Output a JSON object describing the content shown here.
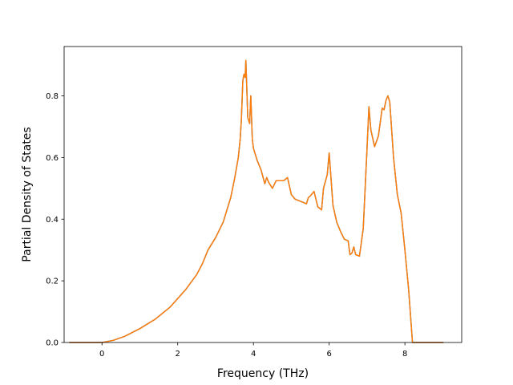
{
  "chart_data": {
    "type": "line",
    "title": "",
    "xlabel": "Frequency (THz)",
    "ylabel": "Partial Density of States",
    "xlim": [
      -1.0,
      9.5
    ],
    "ylim": [
      0.0,
      0.96
    ],
    "xticks": [
      0,
      2,
      4,
      6,
      8
    ],
    "yticks": [
      0.0,
      0.2,
      0.4,
      0.6,
      0.8
    ],
    "xtick_labels": [
      "0",
      "2",
      "4",
      "6",
      "8"
    ],
    "ytick_labels": [
      "0.0",
      "0.2",
      "0.4",
      "0.6",
      "0.8"
    ],
    "grid": false,
    "legend": false,
    "series": [
      {
        "color": "#1f77b4",
        "x": [
          -0.85,
          0.0,
          0.3,
          0.6,
          1.0,
          1.4,
          1.8,
          2.2,
          2.5,
          2.65,
          2.8,
          3.0,
          3.2,
          3.4,
          3.5,
          3.6,
          3.65,
          3.68,
          3.72,
          3.75,
          3.78,
          3.8,
          3.85,
          3.9,
          3.93,
          3.97,
          4.0,
          4.1,
          4.2,
          4.3,
          4.35,
          4.4,
          4.5,
          4.6,
          4.7,
          4.8,
          4.9,
          5.0,
          5.1,
          5.2,
          5.3,
          5.4,
          5.45,
          5.5,
          5.6,
          5.7,
          5.8,
          5.85,
          5.95,
          6.0,
          6.1,
          6.2,
          6.3,
          6.4,
          6.5,
          6.55,
          6.6,
          6.65,
          6.7,
          6.8,
          6.9,
          7.0,
          7.05,
          7.1,
          7.2,
          7.3,
          7.4,
          7.45,
          7.5,
          7.55,
          7.6,
          7.7,
          7.8,
          7.9,
          8.0,
          8.1,
          8.2,
          8.25,
          9.0
        ],
        "y": [
          0.0,
          0.0,
          0.007,
          0.02,
          0.045,
          0.075,
          0.115,
          0.17,
          0.22,
          0.255,
          0.3,
          0.34,
          0.39,
          0.47,
          0.53,
          0.6,
          0.66,
          0.72,
          0.85,
          0.87,
          0.86,
          0.915,
          0.73,
          0.71,
          0.8,
          0.66,
          0.63,
          0.59,
          0.56,
          0.515,
          0.535,
          0.52,
          0.5,
          0.525,
          0.525,
          0.525,
          0.535,
          0.48,
          0.465,
          0.46,
          0.455,
          0.45,
          0.47,
          0.475,
          0.49,
          0.44,
          0.43,
          0.5,
          0.545,
          0.615,
          0.445,
          0.39,
          0.36,
          0.335,
          0.33,
          0.285,
          0.29,
          0.31,
          0.285,
          0.28,
          0.37,
          0.63,
          0.765,
          0.69,
          0.635,
          0.67,
          0.76,
          0.755,
          0.785,
          0.8,
          0.78,
          0.6,
          0.48,
          0.42,
          0.3,
          0.17,
          0.0,
          0.0,
          0.0
        ]
      },
      {
        "color": "#ff7f0e",
        "x": [
          -0.85,
          0.0,
          0.3,
          0.6,
          1.0,
          1.4,
          1.8,
          2.2,
          2.5,
          2.65,
          2.8,
          3.0,
          3.2,
          3.4,
          3.5,
          3.6,
          3.65,
          3.68,
          3.72,
          3.75,
          3.78,
          3.8,
          3.85,
          3.9,
          3.93,
          3.97,
          4.0,
          4.1,
          4.2,
          4.3,
          4.35,
          4.4,
          4.5,
          4.6,
          4.7,
          4.8,
          4.9,
          5.0,
          5.1,
          5.2,
          5.3,
          5.4,
          5.45,
          5.5,
          5.6,
          5.7,
          5.8,
          5.85,
          5.95,
          6.0,
          6.1,
          6.2,
          6.3,
          6.4,
          6.5,
          6.55,
          6.6,
          6.65,
          6.7,
          6.8,
          6.9,
          7.0,
          7.05,
          7.1,
          7.2,
          7.3,
          7.4,
          7.45,
          7.5,
          7.55,
          7.6,
          7.7,
          7.8,
          7.9,
          8.0,
          8.1,
          8.2,
          8.25,
          9.0
        ],
        "y": [
          0.0,
          0.0,
          0.007,
          0.02,
          0.045,
          0.075,
          0.115,
          0.17,
          0.22,
          0.255,
          0.3,
          0.34,
          0.39,
          0.47,
          0.53,
          0.6,
          0.66,
          0.72,
          0.85,
          0.87,
          0.86,
          0.915,
          0.73,
          0.71,
          0.8,
          0.66,
          0.63,
          0.59,
          0.56,
          0.515,
          0.535,
          0.52,
          0.5,
          0.525,
          0.525,
          0.525,
          0.535,
          0.48,
          0.465,
          0.46,
          0.455,
          0.45,
          0.47,
          0.475,
          0.49,
          0.44,
          0.43,
          0.5,
          0.545,
          0.615,
          0.445,
          0.39,
          0.36,
          0.335,
          0.33,
          0.285,
          0.29,
          0.31,
          0.285,
          0.28,
          0.37,
          0.63,
          0.765,
          0.69,
          0.635,
          0.67,
          0.76,
          0.755,
          0.785,
          0.8,
          0.78,
          0.6,
          0.48,
          0.42,
          0.3,
          0.17,
          0.0,
          0.0,
          0.0
        ]
      }
    ]
  }
}
